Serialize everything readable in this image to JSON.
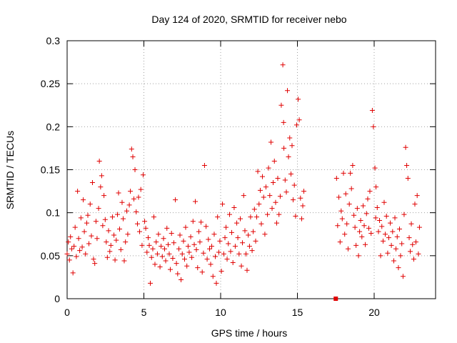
{
  "chart_data": {
    "type": "scatter",
    "title": "Day 124 of 2020, SRMTID for receiver nebo",
    "xlabel": "GPS time / hours",
    "ylabel": "SRMTID / TECUs",
    "xlim": [
      0,
      24
    ],
    "ylim": [
      0,
      0.3
    ],
    "xticks": [
      0,
      5,
      10,
      15,
      20
    ],
    "xtick_labels": [
      "0",
      "5",
      "10",
      "15",
      "20"
    ],
    "yticks": [
      0,
      0.05,
      0.1,
      0.15,
      0.2,
      0.25,
      0.3
    ],
    "ytick_labels": [
      "0",
      "0.05",
      "0.1",
      "0.15",
      "0.2",
      "0.25",
      "0.3"
    ],
    "grid": true,
    "marker": "+",
    "color": "#e00000",
    "series": [
      {
        "name": "SRMTID",
        "points": [
          [
            0.0,
            0.052
          ],
          [
            0.08,
            0.066
          ],
          [
            0.15,
            0.045
          ],
          [
            0.22,
            0.072
          ],
          [
            0.3,
            0.058
          ],
          [
            0.38,
            0.03
          ],
          [
            0.45,
            0.061
          ],
          [
            0.52,
            0.083
          ],
          [
            0.6,
            0.049
          ],
          [
            0.68,
            0.125
          ],
          [
            0.75,
            0.07
          ],
          [
            0.82,
            0.056
          ],
          [
            0.9,
            0.094
          ],
          [
            0.98,
            0.06
          ],
          [
            1.05,
            0.115
          ],
          [
            1.12,
            0.078
          ],
          [
            1.2,
            0.052
          ],
          [
            1.28,
            0.088
          ],
          [
            1.35,
            0.097
          ],
          [
            1.42,
            0.064
          ],
          [
            1.5,
            0.11
          ],
          [
            1.58,
            0.073
          ],
          [
            1.65,
            0.135
          ],
          [
            1.72,
            0.046
          ],
          [
            1.8,
            0.041
          ],
          [
            1.88,
            0.09
          ],
          [
            1.95,
            0.07
          ],
          [
            2.05,
            0.105
          ],
          [
            2.1,
            0.16
          ],
          [
            2.18,
            0.13
          ],
          [
            2.25,
            0.143
          ],
          [
            2.32,
            0.085
          ],
          [
            2.4,
            0.12
          ],
          [
            2.48,
            0.092
          ],
          [
            2.55,
            0.066
          ],
          [
            2.62,
            0.048
          ],
          [
            2.7,
            0.079
          ],
          [
            2.78,
            0.055
          ],
          [
            2.85,
            0.062
          ],
          [
            2.95,
            0.095
          ],
          [
            3.05,
            0.074
          ],
          [
            3.12,
            0.045
          ],
          [
            3.2,
            0.068
          ],
          [
            3.28,
            0.098
          ],
          [
            3.35,
            0.123
          ],
          [
            3.42,
            0.081
          ],
          [
            3.5,
            0.057
          ],
          [
            3.58,
            0.112
          ],
          [
            3.65,
            0.093
          ],
          [
            3.72,
            0.044
          ],
          [
            3.8,
            0.066
          ],
          [
            3.88,
            0.102
          ],
          [
            3.95,
            0.075
          ],
          [
            4.05,
            0.109
          ],
          [
            4.12,
            0.125
          ],
          [
            4.2,
            0.174
          ],
          [
            4.28,
            0.165
          ],
          [
            4.35,
            0.116
          ],
          [
            4.42,
            0.15
          ],
          [
            4.5,
            0.101
          ],
          [
            4.58,
            0.087
          ],
          [
            4.65,
            0.118
          ],
          [
            4.72,
            0.078
          ],
          [
            4.8,
            0.127
          ],
          [
            4.88,
            0.062
          ],
          [
            4.95,
            0.144
          ],
          [
            5.05,
            0.09
          ],
          [
            5.12,
            0.082
          ],
          [
            5.2,
            0.054
          ],
          [
            5.28,
            0.071
          ],
          [
            5.35,
            0.062
          ],
          [
            5.42,
            0.018
          ],
          [
            5.5,
            0.048
          ],
          [
            5.58,
            0.058
          ],
          [
            5.65,
            0.095
          ],
          [
            5.72,
            0.04
          ],
          [
            5.8,
            0.066
          ],
          [
            5.88,
            0.052
          ],
          [
            5.95,
            0.075
          ],
          [
            6.05,
            0.037
          ],
          [
            6.12,
            0.061
          ],
          [
            6.2,
            0.049
          ],
          [
            6.28,
            0.07
          ],
          [
            6.35,
            0.058
          ],
          [
            6.42,
            0.044
          ],
          [
            6.5,
            0.082
          ],
          [
            6.58,
            0.063
          ],
          [
            6.65,
            0.052
          ],
          [
            6.72,
            0.034
          ],
          [
            6.8,
            0.076
          ],
          [
            6.88,
            0.047
          ],
          [
            6.95,
            0.065
          ],
          [
            7.05,
            0.115
          ],
          [
            7.12,
            0.041
          ],
          [
            7.2,
            0.029
          ],
          [
            7.28,
            0.058
          ],
          [
            7.35,
            0.074
          ],
          [
            7.42,
            0.022
          ],
          [
            7.5,
            0.052
          ],
          [
            7.58,
            0.067
          ],
          [
            7.65,
            0.046
          ],
          [
            7.72,
            0.083
          ],
          [
            7.8,
            0.038
          ],
          [
            7.88,
            0.061
          ],
          [
            7.95,
            0.054
          ],
          [
            8.05,
            0.072
          ],
          [
            8.12,
            0.048
          ],
          [
            8.2,
            0.09
          ],
          [
            8.28,
            0.063
          ],
          [
            8.35,
            0.113
          ],
          [
            8.42,
            0.057
          ],
          [
            8.5,
            0.036
          ],
          [
            8.58,
            0.078
          ],
          [
            8.65,
            0.066
          ],
          [
            8.72,
            0.089
          ],
          [
            8.8,
            0.031
          ],
          [
            8.88,
            0.053
          ],
          [
            8.95,
            0.155
          ],
          [
            9.05,
            0.084
          ],
          [
            9.12,
            0.046
          ],
          [
            9.2,
            0.069
          ],
          [
            9.28,
            0.058
          ],
          [
            9.35,
            0.04
          ],
          [
            9.42,
            0.061
          ],
          [
            9.5,
            0.026
          ],
          [
            9.58,
            0.075
          ],
          [
            9.65,
            0.049
          ],
          [
            9.72,
            0.018
          ],
          [
            9.8,
            0.095
          ],
          [
            9.88,
            0.054
          ],
          [
            9.95,
            0.067
          ],
          [
            10.05,
            0.032
          ],
          [
            10.12,
            0.11
          ],
          [
            10.2,
            0.052
          ],
          [
            10.28,
            0.071
          ],
          [
            10.35,
            0.083
          ],
          [
            10.42,
            0.046
          ],
          [
            10.5,
            0.064
          ],
          [
            10.58,
            0.098
          ],
          [
            10.65,
            0.055
          ],
          [
            10.72,
            0.077
          ],
          [
            10.8,
            0.042
          ],
          [
            10.88,
            0.106
          ],
          [
            10.95,
            0.061
          ],
          [
            11.05,
            0.088
          ],
          [
            11.12,
            0.071
          ],
          [
            11.2,
            0.052
          ],
          [
            11.28,
            0.093
          ],
          [
            11.35,
            0.038
          ],
          [
            11.42,
            0.065
          ],
          [
            11.5,
            0.12
          ],
          [
            11.58,
            0.079
          ],
          [
            11.65,
            0.052
          ],
          [
            11.72,
            0.033
          ],
          [
            11.8,
            0.074
          ],
          [
            11.88,
            0.061
          ],
          [
            11.95,
            0.095
          ],
          [
            12.05,
            0.056
          ],
          [
            12.12,
            0.078
          ],
          [
            12.2,
            0.104
          ],
          [
            12.28,
            0.067
          ],
          [
            12.35,
            0.095
          ],
          [
            12.42,
            0.148
          ],
          [
            12.5,
            0.11
          ],
          [
            12.58,
            0.126
          ],
          [
            12.65,
            0.087
          ],
          [
            12.72,
            0.142
          ],
          [
            12.8,
            0.118
          ],
          [
            12.88,
            0.075
          ],
          [
            12.95,
            0.13
          ],
          [
            13.05,
            0.098
          ],
          [
            13.12,
            0.152
          ],
          [
            13.2,
            0.12
          ],
          [
            13.28,
            0.182
          ],
          [
            13.35,
            0.105
          ],
          [
            13.42,
            0.135
          ],
          [
            13.5,
            0.16
          ],
          [
            13.58,
            0.112
          ],
          [
            13.65,
            0.088
          ],
          [
            13.72,
            0.14
          ],
          [
            13.8,
            0.098
          ],
          [
            13.88,
            0.119
          ],
          [
            13.95,
            0.225
          ],
          [
            14.05,
            0.272
          ],
          [
            14.1,
            0.205
          ],
          [
            14.12,
            0.175
          ],
          [
            14.2,
            0.138
          ],
          [
            14.28,
            0.124
          ],
          [
            14.35,
            0.242
          ],
          [
            14.42,
            0.165
          ],
          [
            14.5,
            0.187
          ],
          [
            14.58,
            0.145
          ],
          [
            14.65,
            0.178
          ],
          [
            14.72,
            0.115
          ],
          [
            14.8,
            0.132
          ],
          [
            14.88,
            0.096
          ],
          [
            14.95,
            0.202
          ],
          [
            15.05,
            0.232
          ],
          [
            15.12,
            0.208
          ],
          [
            15.2,
            0.117
          ],
          [
            15.28,
            0.093
          ],
          [
            15.35,
            0.108
          ],
          [
            15.42,
            0.125
          ],
          [
            17.55,
            0.14
          ],
          [
            17.62,
            0.085
          ],
          [
            17.7,
            0.118
          ],
          [
            17.78,
            0.066
          ],
          [
            17.85,
            0.102
          ],
          [
            17.92,
            0.093
          ],
          [
            18.0,
            0.146
          ],
          [
            18.08,
            0.075
          ],
          [
            18.15,
            0.122
          ],
          [
            18.22,
            0.087
          ],
          [
            18.3,
            0.058
          ],
          [
            18.38,
            0.11
          ],
          [
            18.45,
            0.146
          ],
          [
            18.52,
            0.128
          ],
          [
            18.6,
            0.155
          ],
          [
            18.68,
            0.097
          ],
          [
            18.75,
            0.083
          ],
          [
            18.82,
            0.062
          ],
          [
            18.9,
            0.105
          ],
          [
            18.98,
            0.05
          ],
          [
            19.05,
            0.078
          ],
          [
            19.12,
            0.091
          ],
          [
            19.2,
            0.072
          ],
          [
            19.28,
            0.108
          ],
          [
            19.35,
            0.085
          ],
          [
            19.42,
            0.063
          ],
          [
            19.5,
            0.099
          ],
          [
            19.58,
            0.116
          ],
          [
            19.65,
            0.082
          ],
          [
            19.72,
            0.125
          ],
          [
            19.8,
            0.076
          ],
          [
            19.88,
            0.219
          ],
          [
            19.95,
            0.2
          ],
          [
            20.05,
            0.152
          ],
          [
            20.1,
            0.094
          ],
          [
            20.12,
            0.13
          ],
          [
            20.2,
            0.106
          ],
          [
            20.28,
            0.078
          ],
          [
            20.35,
            0.091
          ],
          [
            20.42,
            0.05
          ],
          [
            20.5,
            0.084
          ],
          [
            20.58,
            0.067
          ],
          [
            20.65,
            0.112
          ],
          [
            20.72,
            0.075
          ],
          [
            20.8,
            0.096
          ],
          [
            20.88,
            0.053
          ],
          [
            20.95,
            0.071
          ],
          [
            21.05,
            0.088
          ],
          [
            21.12,
            0.062
          ],
          [
            21.2,
            0.078
          ],
          [
            21.28,
            0.044
          ],
          [
            21.35,
            0.094
          ],
          [
            21.42,
            0.058
          ],
          [
            21.5,
            0.072
          ],
          [
            21.58,
            0.036
          ],
          [
            21.65,
            0.081
          ],
          [
            21.72,
            0.05
          ],
          [
            21.8,
            0.064
          ],
          [
            21.88,
            0.026
          ],
          [
            21.95,
            0.098
          ],
          [
            22.05,
            0.176
          ],
          [
            22.12,
            0.155
          ],
          [
            22.2,
            0.14
          ],
          [
            22.28,
            0.071
          ],
          [
            22.35,
            0.055
          ],
          [
            22.42,
            0.087
          ],
          [
            22.5,
            0.063
          ],
          [
            22.58,
            0.046
          ],
          [
            22.65,
            0.11
          ],
          [
            22.72,
            0.066
          ],
          [
            22.8,
            0.12
          ],
          [
            22.88,
            0.052
          ],
          [
            22.95,
            0.083
          ]
        ],
        "anomaly_point": [
          17.5,
          0.0
        ]
      }
    ]
  }
}
